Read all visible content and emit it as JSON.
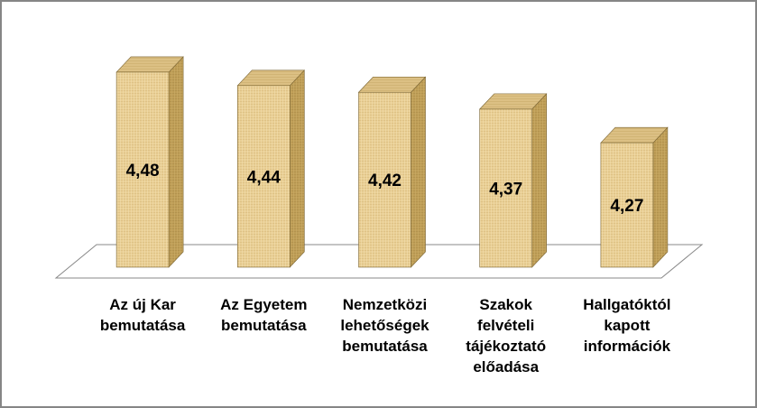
{
  "chart_data": {
    "type": "bar",
    "style": "3d-columns",
    "categories": [
      [
        "Az új Kar",
        "bemutatása"
      ],
      [
        "Az Egyetem",
        "bemutatása"
      ],
      [
        "Nemzetközi",
        "lehetőségek",
        "bemutatása"
      ],
      [
        "Szakok",
        "felvételi",
        "tájékoztató",
        "előadása"
      ],
      [
        "Hallgatóktól",
        "kapott",
        "információk"
      ]
    ],
    "values": [
      4.48,
      4.44,
      4.42,
      4.37,
      4.27
    ],
    "value_labels": [
      "4,48",
      "4,44",
      "4,42",
      "4,37",
      "4,27"
    ],
    "title": "",
    "xlabel": "",
    "ylabel": "",
    "grid": false,
    "legend": "none",
    "colors": {
      "bar_front": "#e9cf95",
      "bar_side": "#bf9e57",
      "bar_top": "#dcc084",
      "bar_edge": "#7a6432",
      "floor_line": "#888888",
      "frame": "#868686"
    }
  }
}
